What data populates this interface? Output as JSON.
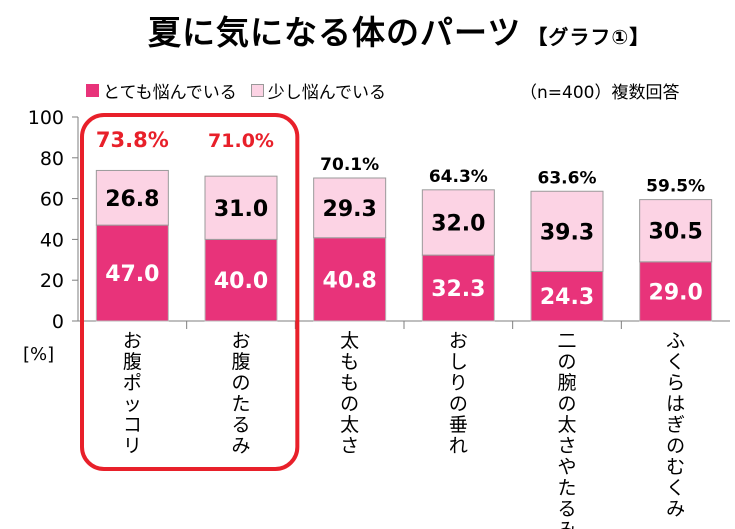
{
  "title": "夏に気になる体のパーツ",
  "title_tag": "【グラフ①】",
  "note": "（n=400）複数回答",
  "y_unit": "[%]",
  "colors": {
    "strong": "#e8337a",
    "light": "#fcd3e4",
    "highlight": "#e8202a",
    "axis": "#7f7f7f"
  },
  "chart_data": {
    "type": "bar",
    "stacked": true,
    "categories": [
      "お腹ポッコリ",
      "お腹のたるみ",
      "太ももの太さ",
      "おしりの垂れ",
      "二の腕の太さやたるみ",
      "ふくらはぎのむくみ"
    ],
    "series": [
      {
        "name": "とても悩んでいる",
        "values": [
          47.0,
          40.0,
          40.8,
          32.3,
          24.3,
          29.0
        ]
      },
      {
        "name": "少し悩んでいる",
        "values": [
          26.8,
          31.0,
          29.3,
          32.0,
          39.3,
          30.5
        ]
      }
    ],
    "totals": [
      "73.8%",
      "71.0%",
      "70.1%",
      "64.3%",
      "63.6%",
      "59.5%"
    ],
    "segment_labels": [
      [
        "47.0",
        "40.0",
        "40.8",
        "32.3",
        "24.3",
        "29.0"
      ],
      [
        "26.8",
        "31.0",
        "29.3",
        "32.0",
        "39.3",
        "30.5"
      ]
    ],
    "highlighted": [
      0,
      1
    ],
    "yticks": [
      "0",
      "20",
      "40",
      "60",
      "80",
      "100"
    ],
    "ylim": [
      0,
      100
    ],
    "grid": false,
    "legend_position": "top-left"
  }
}
